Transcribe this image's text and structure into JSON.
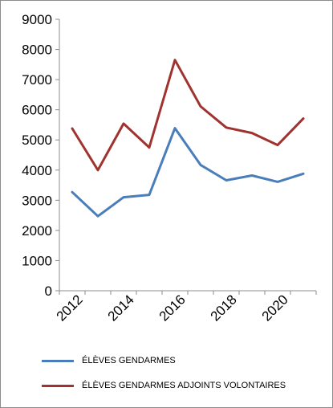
{
  "chart_data": {
    "type": "line",
    "x": [
      2012,
      2013,
      2014,
      2015,
      2016,
      2017,
      2018,
      2019,
      2020,
      2021
    ],
    "xticks": [
      "2012",
      "2014",
      "2016",
      "2018",
      "2020"
    ],
    "yticks": [
      "0",
      "1000",
      "2000",
      "3000",
      "4000",
      "5000",
      "6000",
      "7000",
      "8000",
      "9000"
    ],
    "ylim": [
      0,
      9000
    ],
    "grid": false,
    "legend_position": "bottom",
    "series": [
      {
        "name": "ÉLÈVES GENDARMES",
        "color": "#4a7ebb",
        "values": [
          3270,
          2470,
          3100,
          3180,
          5390,
          4170,
          3660,
          3820,
          3610,
          3880
        ]
      },
      {
        "name": "ÉLÈVES GENDARMES ADJOINTS VOLONTAIRES",
        "color": "#a0332f",
        "values": [
          5380,
          4000,
          5540,
          4750,
          7650,
          6110,
          5410,
          5230,
          4830,
          5710
        ]
      }
    ]
  }
}
